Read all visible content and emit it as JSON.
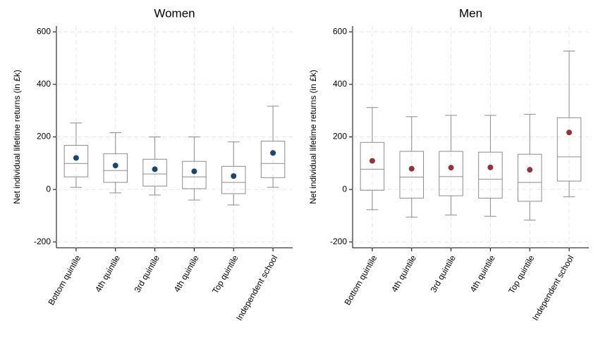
{
  "chart_data": [
    {
      "type": "box",
      "title": "Women",
      "ylabel": "Net individual lifetime returns (in £k)",
      "categories": [
        "Bottom quintile",
        "4th quintile",
        "3rd quintile",
        "4th quintile",
        "Top quintile",
        "Independent school"
      ],
      "boxes": [
        {
          "whisker_low": 8,
          "q1": 48,
          "median": 99,
          "q3": 168,
          "whisker_high": 253,
          "mean": 120
        },
        {
          "whisker_low": -13,
          "q1": 27,
          "median": 72,
          "q3": 136,
          "whisker_high": 216,
          "mean": 91
        },
        {
          "whisker_low": -21,
          "q1": 13,
          "median": 59,
          "q3": 115,
          "whisker_high": 200,
          "mean": 77
        },
        {
          "whisker_low": -40,
          "q1": 3,
          "median": 48,
          "q3": 107,
          "whisker_high": 200,
          "mean": 69
        },
        {
          "whisker_low": -59,
          "q1": -16,
          "median": 27,
          "q3": 88,
          "whisker_high": 181,
          "mean": 51
        },
        {
          "whisker_low": 8,
          "q1": 45,
          "median": 99,
          "q3": 184,
          "whisker_high": 317,
          "mean": 139
        }
      ],
      "box_color": "#8c8c8c",
      "mean_color": "#1a476f",
      "ylim": [
        -222,
        622
      ],
      "yticks": [
        -200,
        0,
        200,
        400,
        600
      ],
      "grid": true
    },
    {
      "type": "box",
      "title": "Men",
      "ylabel": "Net individual lifetime returns (in £k)",
      "categories": [
        "Bottom quintile",
        "4th quintile",
        "3rd quintile",
        "4th quintile",
        "Top quintile",
        "Independent school"
      ],
      "boxes": [
        {
          "whisker_low": -77,
          "q1": -3,
          "median": 77,
          "q3": 179,
          "whisker_high": 312,
          "mean": 109
        },
        {
          "whisker_low": -105,
          "q1": -33,
          "median": 47,
          "q3": 145,
          "whisker_high": 277,
          "mean": 79
        },
        {
          "whisker_low": -97,
          "q1": -24,
          "median": 49,
          "q3": 145,
          "whisker_high": 282,
          "mean": 83
        },
        {
          "whisker_low": -102,
          "q1": -33,
          "median": 39,
          "q3": 142,
          "whisker_high": 282,
          "mean": 84
        },
        {
          "whisker_low": -117,
          "q1": -45,
          "median": 27,
          "q3": 134,
          "whisker_high": 286,
          "mean": 75
        },
        {
          "whisker_low": -28,
          "q1": 32,
          "median": 124,
          "q3": 273,
          "whisker_high": 527,
          "mean": 217
        }
      ],
      "box_color": "#8c8c8c",
      "mean_color": "#90353b",
      "ylim": [
        -222,
        622
      ],
      "yticks": [
        -200,
        0,
        200,
        400,
        600
      ],
      "grid": true
    }
  ]
}
